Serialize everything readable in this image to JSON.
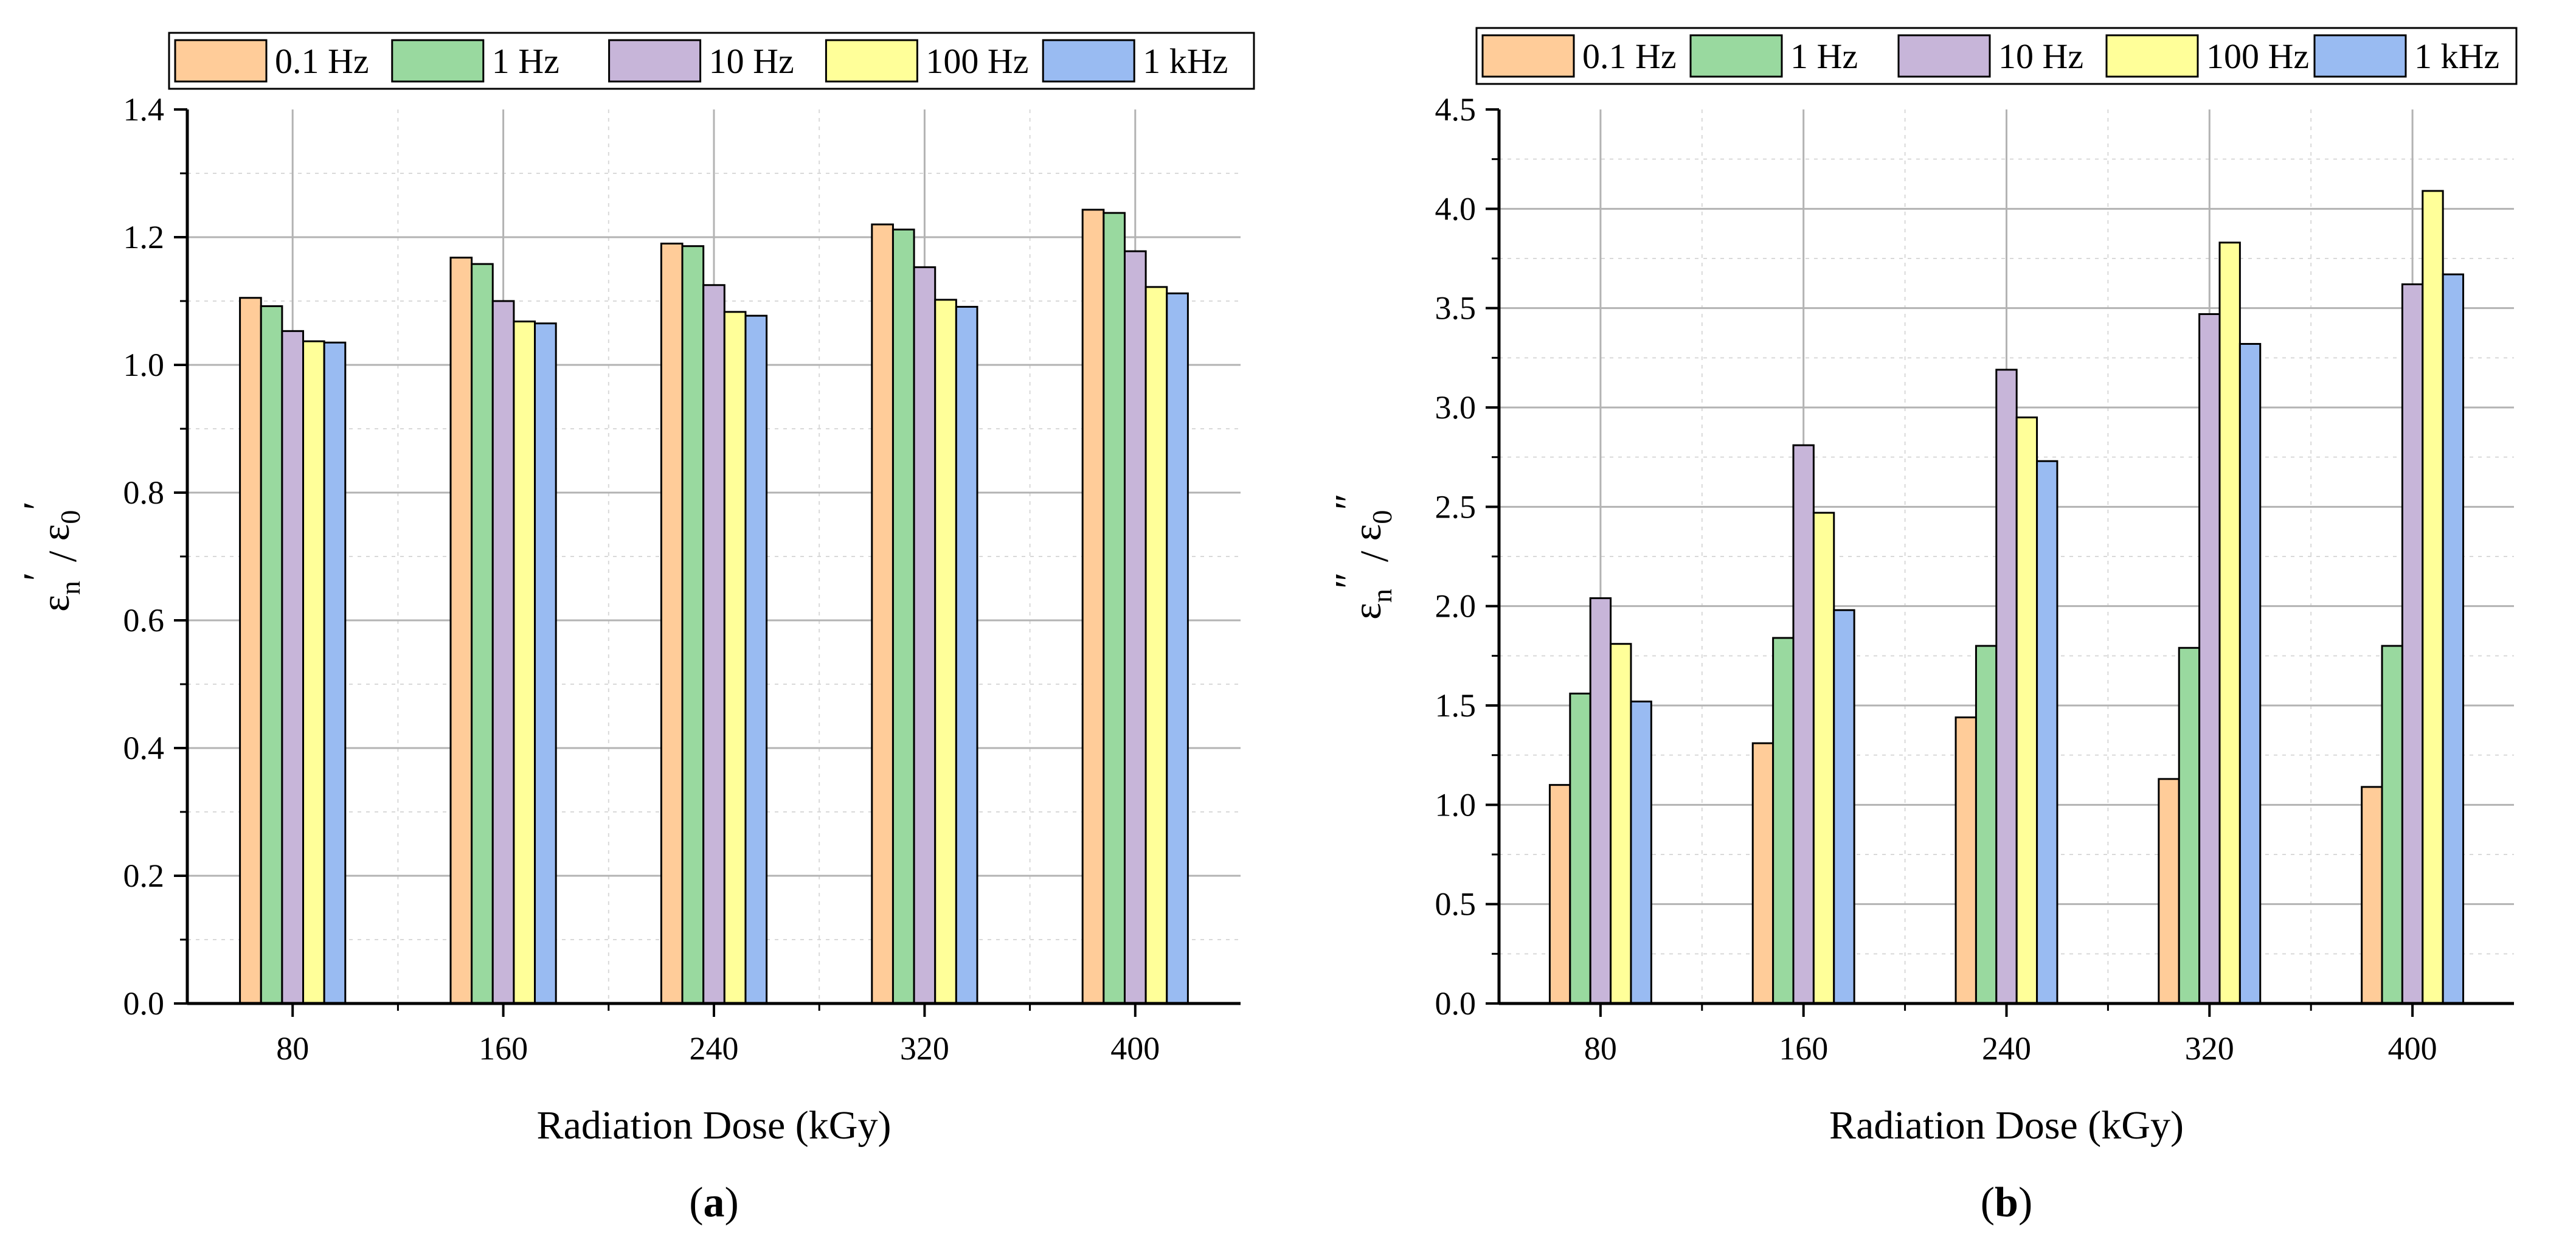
{
  "chart_data": [
    {
      "type": "bar",
      "panel_label": "a",
      "title": "",
      "xlabel": "Radiation Dose (kGy)",
      "ylabel_main": "ε",
      "ylabel_sub_num": "n",
      "ylabel_slash": " / ",
      "ylabel_sub_den": "0",
      "ylabel_prime": "′",
      "categories": [
        "80",
        "160",
        "240",
        "320",
        "400"
      ],
      "ylim": [
        0,
        1.4
      ],
      "yticks": [
        0,
        0.2,
        0.4,
        0.6,
        0.8,
        1.0,
        1.2,
        1.4
      ],
      "ytick_labels": [
        "0.0",
        "0.2",
        "0.4",
        "0.6",
        "0.8",
        "1.0",
        "1.2",
        "1.4"
      ],
      "grid": true,
      "legend_position": "top",
      "series": [
        {
          "name": "0.1 Hz",
          "color": "#FFCC99",
          "values": [
            1.105,
            1.168,
            1.19,
            1.22,
            1.243
          ]
        },
        {
          "name": "1 Hz",
          "color": "#99D99F",
          "values": [
            1.092,
            1.158,
            1.186,
            1.212,
            1.238
          ]
        },
        {
          "name": "10 Hz",
          "color": "#C7B5D9",
          "values": [
            1.053,
            1.1,
            1.125,
            1.153,
            1.178
          ]
        },
        {
          "name": "100 Hz",
          "color": "#FFFF99",
          "values": [
            1.037,
            1.068,
            1.083,
            1.102,
            1.122
          ]
        },
        {
          "name": "1 kHz",
          "color": "#99BBF2",
          "values": [
            1.035,
            1.065,
            1.077,
            1.091,
            1.112
          ]
        }
      ]
    },
    {
      "type": "bar",
      "panel_label": "b",
      "title": "",
      "xlabel": "Radiation Dose (kGy)",
      "ylabel_main": "ε",
      "ylabel_sub_num": "n",
      "ylabel_slash": " / ",
      "ylabel_sub_den": "0",
      "ylabel_prime": "″",
      "categories": [
        "80",
        "160",
        "240",
        "320",
        "400"
      ],
      "ylim": [
        0,
        4.5
      ],
      "yticks": [
        0,
        0.5,
        1.0,
        1.5,
        2.0,
        2.5,
        3.0,
        3.5,
        4.0,
        4.5
      ],
      "ytick_labels": [
        "0.0",
        "0.5",
        "1.0",
        "1.5",
        "2.0",
        "2.5",
        "3.0",
        "3.5",
        "4.0",
        "4.5"
      ],
      "grid": true,
      "legend_position": "top",
      "series": [
        {
          "name": "0.1 Hz",
          "color": "#FFCC99",
          "values": [
            1.1,
            1.31,
            1.44,
            1.13,
            1.09
          ]
        },
        {
          "name": "1 Hz",
          "color": "#99D99F",
          "values": [
            1.56,
            1.84,
            1.8,
            1.79,
            1.8
          ]
        },
        {
          "name": "10 Hz",
          "color": "#C7B5D9",
          "values": [
            2.04,
            2.81,
            3.19,
            3.47,
            3.62
          ]
        },
        {
          "name": "100 Hz",
          "color": "#FFFF99",
          "values": [
            1.81,
            2.47,
            2.95,
            3.83,
            4.09
          ]
        },
        {
          "name": "1 kHz",
          "color": "#99BBF2",
          "values": [
            1.52,
            1.98,
            2.73,
            3.32,
            3.67
          ]
        }
      ]
    }
  ]
}
